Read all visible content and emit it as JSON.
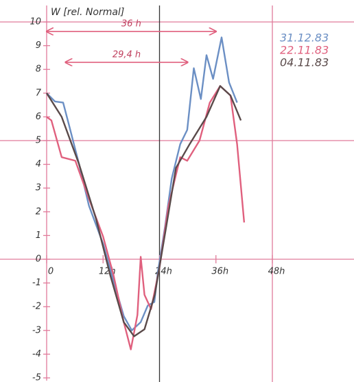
{
  "chart_data": {
    "type": "line",
    "ylabel": "W [rel. Normal]",
    "xlim": [
      0,
      48
    ],
    "ylim": [
      -5,
      10
    ],
    "xticks": [
      0,
      {
        "value": 12,
        "label": "12h"
      },
      {
        "value": 24,
        "label": "24h"
      },
      {
        "value": 36,
        "label": "36h"
      },
      {
        "value": 48,
        "label": "48h"
      }
    ],
    "yticks": [
      -5,
      -4,
      -3,
      -2,
      -1,
      0,
      1,
      2,
      3,
      4,
      5,
      6,
      7,
      8,
      9,
      10
    ],
    "hlines": [
      10,
      5
    ],
    "vlines": [
      24,
      48
    ],
    "annotations": [
      {
        "text": "36 h",
        "x1": 0,
        "x2": 36,
        "y": 9.6
      },
      {
        "text": "29,4 h",
        "x1": 4,
        "x2": 30,
        "y": 8.3
      }
    ],
    "series": [
      {
        "name": "31.12.83",
        "color": "#6b8fc4",
        "x": [
          0,
          1.75,
          3.5,
          4.7,
          6.9,
          9,
          12,
          14.2,
          16.4,
          18.1,
          20,
          21.5,
          22.9,
          23.6,
          25.2,
          26.6,
          28.4,
          29.9,
          31.3,
          32.8,
          34,
          35.4,
          37.2,
          38.8,
          40.5
        ],
        "values": [
          7.0,
          6.65,
          6.6,
          5.7,
          4.0,
          2.25,
          0.65,
          -0.9,
          -2.4,
          -3.0,
          -2.65,
          -1.95,
          -1.8,
          -0.6,
          1.4,
          3.4,
          4.85,
          5.45,
          8.05,
          6.75,
          8.6,
          7.6,
          9.35,
          7.45,
          6.6
        ]
      },
      {
        "name": "22.11.83",
        "color": "#e0607e",
        "x": [
          0,
          1,
          3.2,
          6.1,
          9,
          12,
          14.2,
          16.4,
          17.9,
          19.3,
          20,
          20.8,
          22.2,
          24,
          25.9,
          28.4,
          29.9,
          32.5,
          34.7,
          36.9,
          39.1,
          40.5,
          42
        ],
        "values": [
          6.0,
          5.85,
          4.3,
          4.15,
          2.55,
          0.95,
          -0.65,
          -2.65,
          -3.8,
          -2.35,
          0.1,
          -1.5,
          -2.1,
          -0.35,
          2.25,
          4.3,
          4.15,
          5.0,
          6.6,
          7.3,
          6.9,
          4.85,
          1.55
        ]
      },
      {
        "name": "04.11.83",
        "color": "#5a4a4a",
        "x": [
          0,
          3.2,
          6.9,
          10.5,
          13.5,
          16.4,
          18.6,
          20.8,
          23,
          25.2,
          27.5,
          30.4,
          34,
          36.9,
          39.1,
          41.3
        ],
        "values": [
          7.0,
          6.0,
          4.0,
          1.7,
          -0.65,
          -2.65,
          -3.25,
          -2.95,
          -1.5,
          1.1,
          3.85,
          4.85,
          6.0,
          7.3,
          6.9,
          5.85
        ]
      }
    ]
  }
}
